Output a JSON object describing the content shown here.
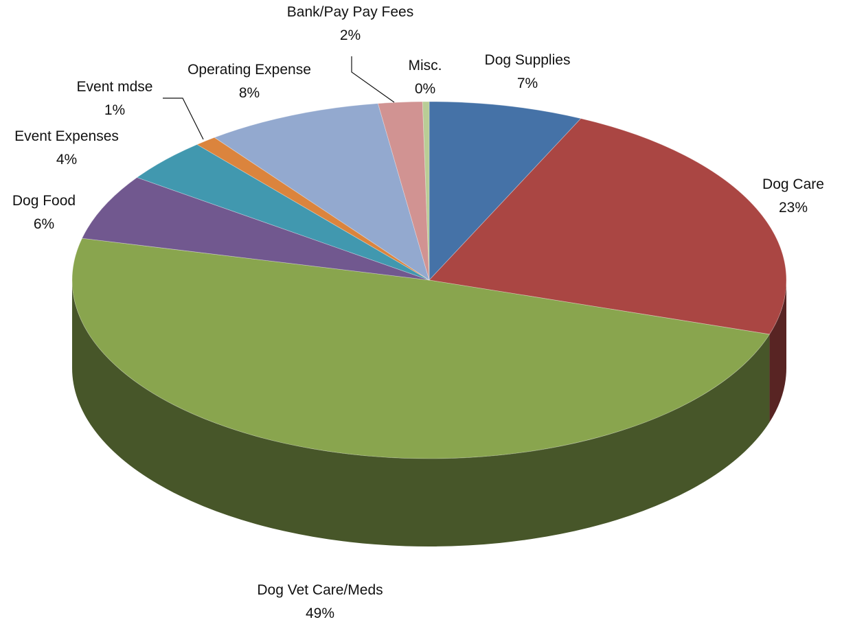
{
  "chart_data": {
    "type": "pie",
    "title": "",
    "style": "3d",
    "slices": [
      {
        "label": "Dog Supplies",
        "value": 7,
        "percent_label": "7%",
        "color": "#4572A7"
      },
      {
        "label": "Dog Care",
        "value": 23,
        "percent_label": "23%",
        "color": "#AA4643"
      },
      {
        "label": "Dog Vet Care/Meds",
        "value": 49,
        "percent_label": "49%",
        "color": "#89A54E"
      },
      {
        "label": "Dog Food",
        "value": 6,
        "percent_label": "6%",
        "color": "#71588F"
      },
      {
        "label": "Event Expenses",
        "value": 4,
        "percent_label": "4%",
        "color": "#4198AF"
      },
      {
        "label": "Event mdse",
        "value": 1,
        "percent_label": "1%",
        "color": "#DB843D"
      },
      {
        "label": "Operating Expense",
        "value": 8,
        "percent_label": "8%",
        "color": "#93A9CF"
      },
      {
        "label": "Bank/Pay Pay Fees",
        "value": 2,
        "percent_label": "2%",
        "color": "#D19392"
      },
      {
        "label": "Misc.",
        "value": 0.3,
        "percent_label": "0%",
        "color": "#B9CD96"
      }
    ],
    "legend": "none"
  }
}
